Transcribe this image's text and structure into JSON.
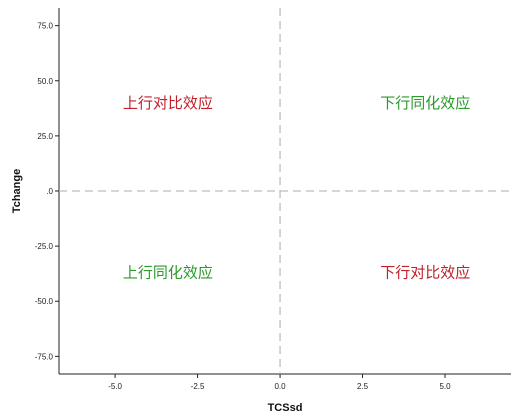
{
  "chart_data": {
    "type": "scatter",
    "title": "",
    "xlabel": "TCSsd",
    "ylabel": "Tchange",
    "xlim": [
      -6.7,
      7.0
    ],
    "ylim": [
      -83,
      83
    ],
    "x_ticks": [
      -5.0,
      -2.5,
      0.0,
      2.5,
      5.0
    ],
    "x_tick_labels": [
      "-5.0",
      "-2.5",
      "0.0",
      "2.5",
      "5.0"
    ],
    "y_ticks": [
      75.0,
      50.0,
      25.0,
      0.0,
      -25.0,
      -50.0,
      -75.0
    ],
    "y_tick_labels": [
      "75.0",
      "50.0",
      "25.0",
      ".0",
      "-25.0",
      "-50.0",
      "-75.0"
    ],
    "reference_lines": {
      "x": 0,
      "y": 0,
      "style": "dashed"
    },
    "grid": false,
    "annotations": [
      {
        "text": "上行对比效应",
        "x": -3.4,
        "y": 40,
        "color": "#c0202a"
      },
      {
        "text": "下行同化效应",
        "x": 4.4,
        "y": 40,
        "color": "#2a9a2a"
      },
      {
        "text": "上行同化效应",
        "x": -3.4,
        "y": -37,
        "color": "#2a9a2a"
      },
      {
        "text": "下行对比效应",
        "x": 4.4,
        "y": -37,
        "color": "#c0202a"
      }
    ]
  },
  "colors": {
    "axis": "#222222",
    "reference_line": "#bdbdbd",
    "contrast_label": "#c0202a",
    "assimilation_label": "#2a9a2a"
  }
}
